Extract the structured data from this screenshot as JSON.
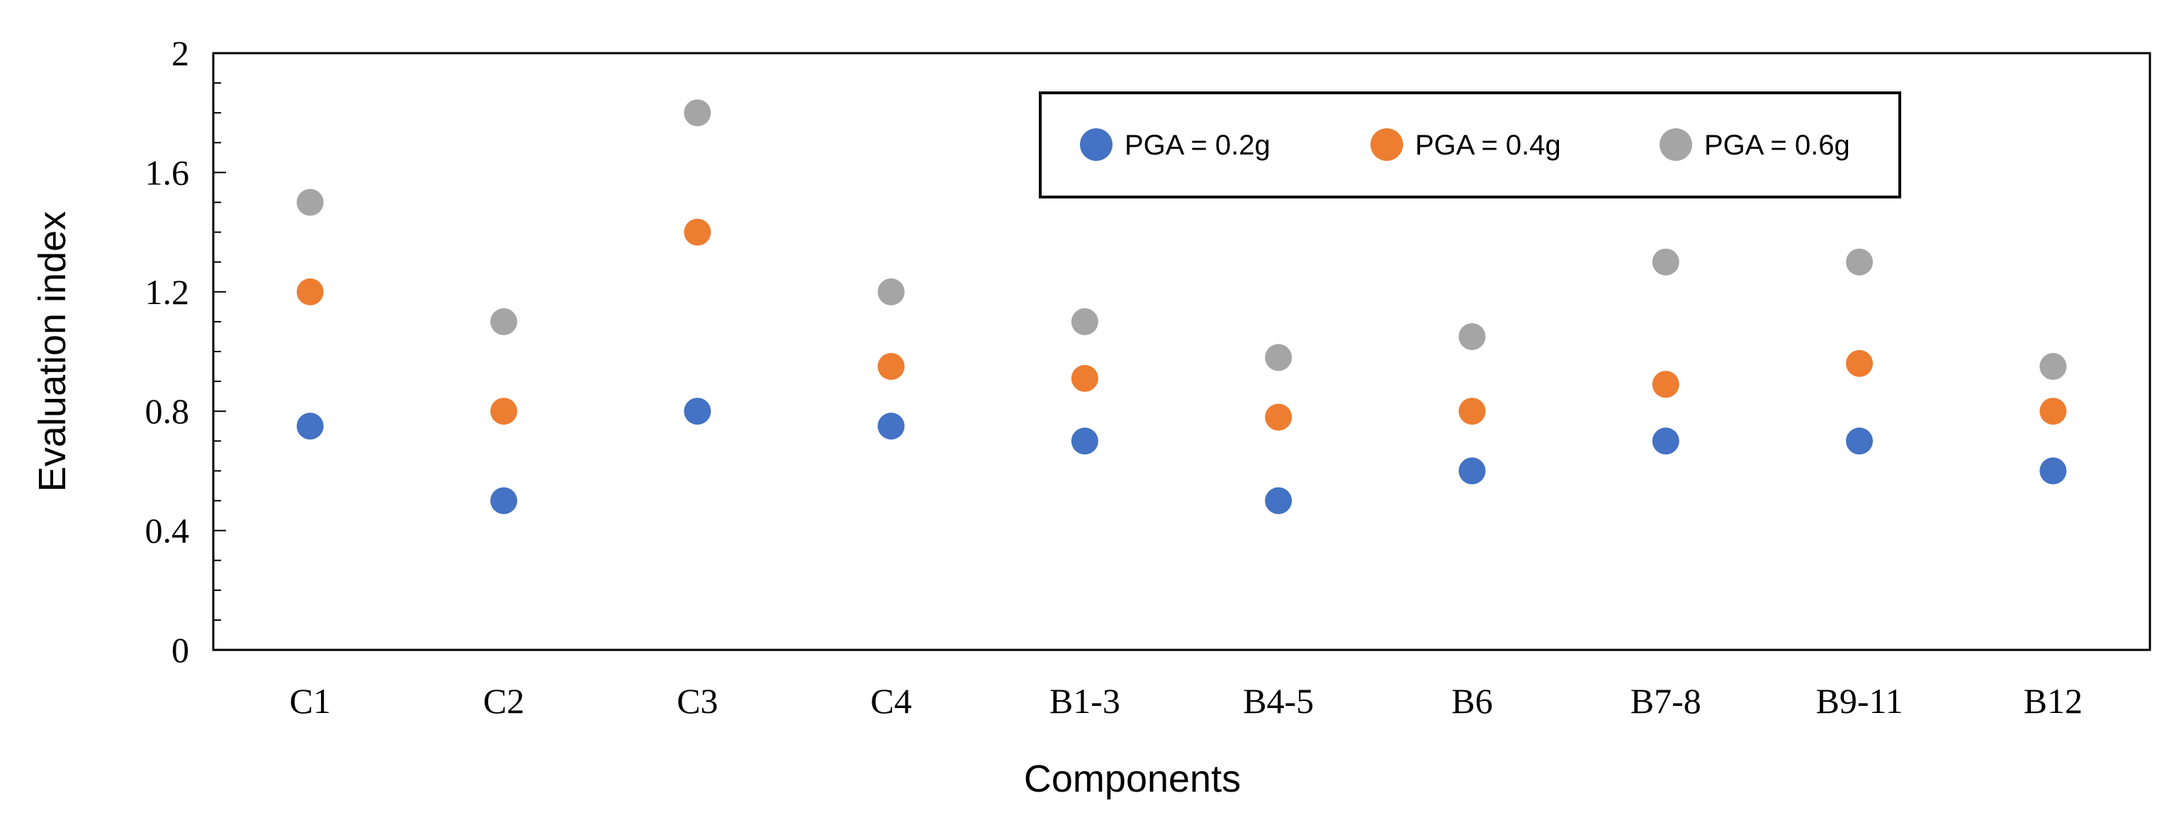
{
  "chart_data": {
    "type": "scatter",
    "title": "",
    "xlabel": "Components",
    "ylabel": "Evaluation index",
    "categories": [
      "C1",
      "C2",
      "C3",
      "C4",
      "B1-3",
      "B4-5",
      "B6",
      "B7-8",
      "B9-11",
      "B12"
    ],
    "ylim": [
      0,
      2
    ],
    "yticks": [
      "0",
      "0.4",
      "0.8",
      "1.2",
      "1.6",
      "2"
    ],
    "ytick_values": [
      0,
      0.4,
      0.8,
      1.2,
      1.6,
      2.0
    ],
    "grid": false,
    "legend_position": "top-right",
    "series": [
      {
        "name": "PGA = 0.2g",
        "color": "#4472C4",
        "values": [
          0.75,
          0.5,
          0.8,
          0.75,
          0.7,
          0.5,
          0.6,
          0.7,
          0.7,
          0.6
        ]
      },
      {
        "name": "PGA = 0.4g",
        "color": "#ED7D31",
        "values": [
          1.2,
          0.8,
          1.4,
          0.95,
          0.91,
          0.78,
          0.8,
          0.89,
          0.96,
          0.8
        ]
      },
      {
        "name": "PGA = 0.6g",
        "color": "#A5A5A5",
        "values": [
          1.5,
          1.1,
          1.8,
          1.2,
          1.1,
          0.98,
          1.05,
          1.3,
          1.3,
          0.95
        ]
      }
    ]
  }
}
